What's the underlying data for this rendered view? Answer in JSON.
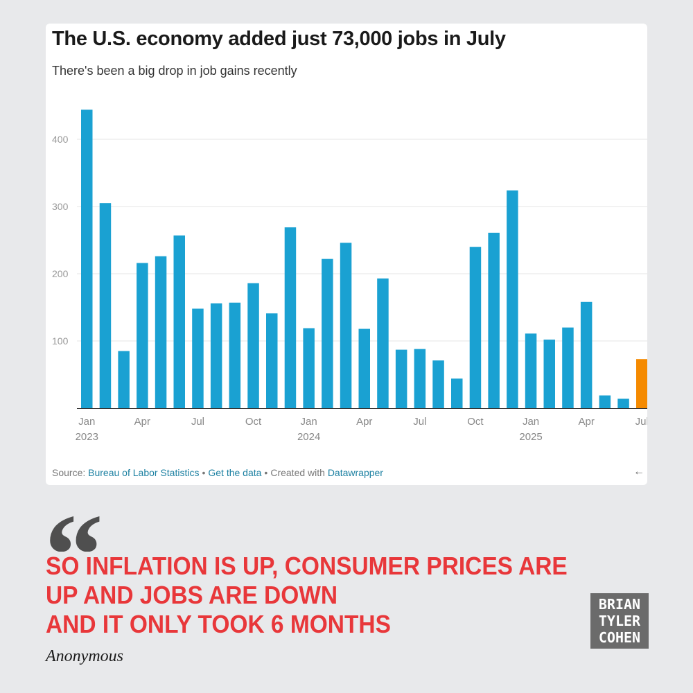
{
  "chart": {
    "title": "The U.S. economy added just 73,000 jobs in July",
    "subtitle": "There's been a big drop in job gains recently",
    "source": {
      "prefix": "Source:",
      "bls_link": "Bureau of Labor Statistics",
      "get_data": "Get the data",
      "created_with": "Created with",
      "datawrapper": "Datawrapper",
      "separator": "•"
    },
    "nav_icon": "arrow-left-icon",
    "nav_glyph": "←"
  },
  "chart_data": {
    "type": "bar",
    "categories": [
      "Jan 2023",
      "Feb 2023",
      "Mar 2023",
      "Apr 2023",
      "May 2023",
      "Jun 2023",
      "Jul 2023",
      "Aug 2023",
      "Sep 2023",
      "Oct 2023",
      "Nov 2023",
      "Dec 2023",
      "Jan 2024",
      "Feb 2024",
      "Mar 2024",
      "Apr 2024",
      "May 2024",
      "Jun 2024",
      "Jul 2024",
      "Aug 2024",
      "Sep 2024",
      "Oct 2024",
      "Nov 2024",
      "Dec 2024",
      "Jan 2025",
      "Feb 2025",
      "Mar 2025",
      "Apr 2025",
      "May 2025",
      "Jun 2025",
      "Jul 2025"
    ],
    "values": [
      444,
      305,
      85,
      216,
      226,
      257,
      148,
      156,
      157,
      186,
      141,
      269,
      119,
      222,
      246,
      118,
      193,
      87,
      88,
      71,
      44,
      240,
      261,
      324,
      111,
      102,
      120,
      158,
      19,
      14,
      73
    ],
    "highlight_index": 30,
    "colors": {
      "bar": "#1aa1d2",
      "highlight": "#f58a00",
      "grid": "#e6e6e6",
      "tick_text": "#999999",
      "axis_text": "#888888"
    },
    "yticks": [
      "100",
      "200",
      "300",
      "400"
    ],
    "ytick_values": [
      100,
      200,
      300,
      400
    ],
    "ylim": [
      0,
      450
    ],
    "x_tick_labels": [
      {
        "index": 0,
        "month": "Jan",
        "year": "2023"
      },
      {
        "index": 3,
        "month": "Apr",
        "year": ""
      },
      {
        "index": 6,
        "month": "Jul",
        "year": ""
      },
      {
        "index": 9,
        "month": "Oct",
        "year": ""
      },
      {
        "index": 12,
        "month": "Jan",
        "year": "2024"
      },
      {
        "index": 15,
        "month": "Apr",
        "year": ""
      },
      {
        "index": 18,
        "month": "Jul",
        "year": ""
      },
      {
        "index": 21,
        "month": "Oct",
        "year": ""
      },
      {
        "index": 24,
        "month": "Jan",
        "year": "2025"
      },
      {
        "index": 27,
        "month": "Apr",
        "year": ""
      },
      {
        "index": 30,
        "month": "Jul",
        "year": ""
      }
    ],
    "grid": true,
    "legend": "none"
  },
  "quote": {
    "mark": "“",
    "lines": [
      "SO INFLATION IS UP, CONSUMER PRICES ARE",
      "UP AND JOBS ARE DOWN",
      "AND IT ONLY TOOK 6 MONTHS"
    ],
    "author": "Anonymous"
  },
  "brand": {
    "lines": [
      "BRIAN",
      "TYLER",
      "COHEN"
    ]
  }
}
